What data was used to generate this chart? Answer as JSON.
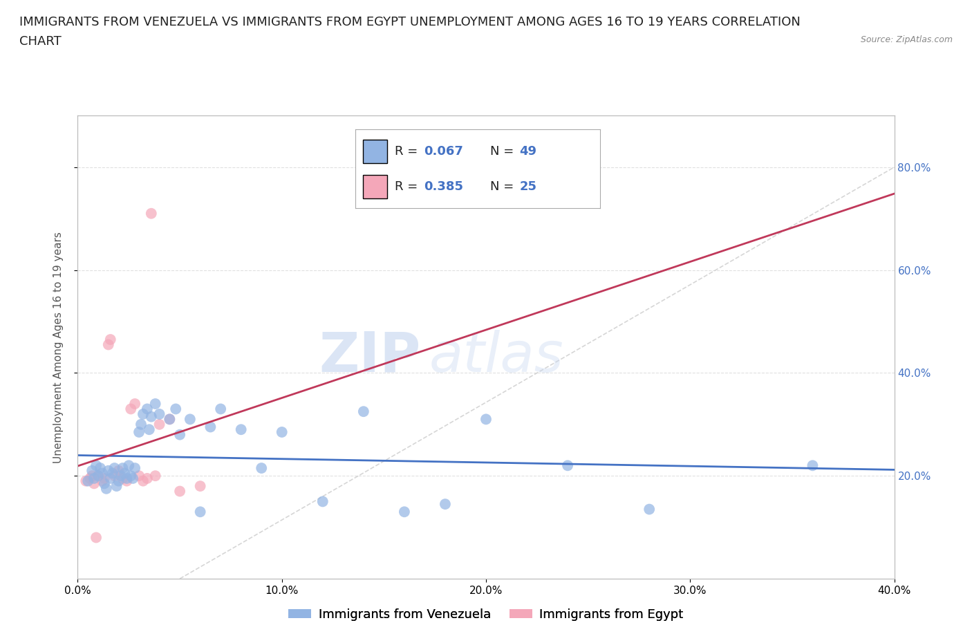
{
  "title_line1": "IMMIGRANTS FROM VENEZUELA VS IMMIGRANTS FROM EGYPT UNEMPLOYMENT AMONG AGES 16 TO 19 YEARS CORRELATION",
  "title_line2": "CHART",
  "source": "Source: ZipAtlas.com",
  "ylabel": "Unemployment Among Ages 16 to 19 years",
  "xlim": [
    0.0,
    0.4
  ],
  "ylim": [
    0.0,
    0.9
  ],
  "xticks": [
    0.0,
    0.1,
    0.2,
    0.3,
    0.4
  ],
  "xtick_labels": [
    "0.0%",
    "10.0%",
    "20.0%",
    "30.0%",
    "40.0%"
  ],
  "ytick_right": [
    0.2,
    0.4,
    0.6,
    0.8
  ],
  "ytick_right_labels": [
    "20.0%",
    "40.0%",
    "60.0%",
    "80.0%"
  ],
  "color_venezuela": "#92b4e3",
  "color_egypt": "#f4a7b9",
  "color_trendline_venezuela": "#4472c4",
  "color_trendline_egypt": "#c0385a",
  "color_diag_line": "#cccccc",
  "watermark_zip": "ZIP",
  "watermark_atlas": "atlas",
  "venezuela_x": [
    0.005,
    0.007,
    0.008,
    0.009,
    0.01,
    0.011,
    0.012,
    0.013,
    0.014,
    0.015,
    0.016,
    0.017,
    0.018,
    0.019,
    0.02,
    0.021,
    0.022,
    0.023,
    0.024,
    0.025,
    0.026,
    0.027,
    0.028,
    0.03,
    0.031,
    0.032,
    0.034,
    0.035,
    0.036,
    0.038,
    0.04,
    0.045,
    0.048,
    0.05,
    0.055,
    0.06,
    0.065,
    0.07,
    0.08,
    0.09,
    0.1,
    0.12,
    0.14,
    0.16,
    0.18,
    0.2,
    0.24,
    0.28,
    0.36
  ],
  "venezuela_y": [
    0.19,
    0.21,
    0.195,
    0.22,
    0.2,
    0.215,
    0.205,
    0.185,
    0.175,
    0.21,
    0.195,
    0.205,
    0.215,
    0.18,
    0.19,
    0.2,
    0.215,
    0.205,
    0.195,
    0.22,
    0.2,
    0.195,
    0.215,
    0.285,
    0.3,
    0.32,
    0.33,
    0.29,
    0.315,
    0.34,
    0.32,
    0.31,
    0.33,
    0.28,
    0.31,
    0.13,
    0.295,
    0.33,
    0.29,
    0.215,
    0.285,
    0.15,
    0.325,
    0.13,
    0.145,
    0.31,
    0.22,
    0.135,
    0.22
  ],
  "egypt_x": [
    0.004,
    0.006,
    0.007,
    0.008,
    0.009,
    0.01,
    0.012,
    0.013,
    0.015,
    0.016,
    0.018,
    0.02,
    0.022,
    0.024,
    0.026,
    0.028,
    0.03,
    0.032,
    0.034,
    0.036,
    0.038,
    0.04,
    0.045,
    0.05,
    0.06
  ],
  "egypt_y": [
    0.19,
    0.195,
    0.2,
    0.185,
    0.08,
    0.2,
    0.19,
    0.195,
    0.455,
    0.465,
    0.2,
    0.21,
    0.195,
    0.19,
    0.33,
    0.34,
    0.2,
    0.19,
    0.195,
    0.71,
    0.2,
    0.3,
    0.31,
    0.17,
    0.18
  ],
  "background_color": "#ffffff",
  "grid_color": "#e0e0e0",
  "title_fontsize": 13,
  "axis_label_fontsize": 11,
  "tick_fontsize": 11,
  "legend_fontsize": 13
}
